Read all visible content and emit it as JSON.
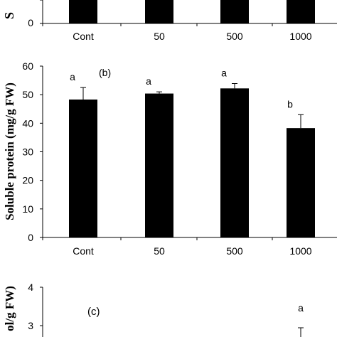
{
  "chart_data": [
    {
      "panel": "a",
      "type": "bar",
      "categories": [
        "Cont",
        "50",
        "500",
        "1000"
      ],
      "ytick_labels": [
        "0"
      ],
      "ylabel_fragment": "S",
      "note": "partially visible; bars cropped at top"
    },
    {
      "panel": "b",
      "type": "bar",
      "panel_label": "(b)",
      "ylabel": "Soluble protein (mg/g FW)",
      "categories": [
        "Cont",
        "50",
        "500",
        "1000"
      ],
      "values": [
        48.3,
        50.4,
        52.2,
        38.3
      ],
      "errors": [
        4.2,
        0.6,
        1.7,
        4.7
      ],
      "letters": [
        "a",
        "a",
        "a",
        "b"
      ],
      "ylim": [
        0,
        60
      ],
      "yticks": [
        0,
        10,
        20,
        30,
        40,
        50,
        60
      ],
      "ytick_labels": [
        "0",
        "10",
        "20",
        "30",
        "40",
        "50",
        "60"
      ],
      "bar_color": "#000000",
      "grid": false
    },
    {
      "panel": "c",
      "type": "bar",
      "panel_label": "(c)",
      "ylabel_fragment": "ol/g FW)",
      "ytick_labels": [
        "4",
        "3"
      ],
      "letters": [
        "a"
      ],
      "note": "partially visible; cropped at bottom"
    }
  ]
}
